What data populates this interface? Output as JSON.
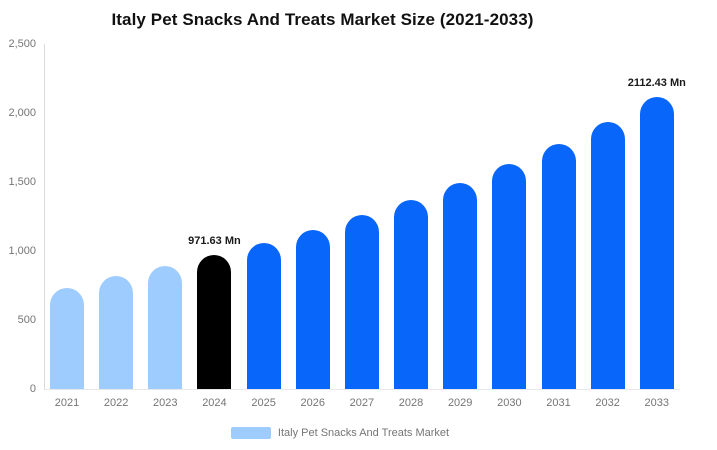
{
  "title": "Italy Pet Snacks And Treats Market Size (2021-2033)",
  "legend": {
    "label": "Italy Pet Snacks And Treats Market",
    "swatch_color": "#9fccfe"
  },
  "colors": {
    "past": "#9fccfe",
    "current": "#000000",
    "forecast": "#0866fa",
    "axis_line": "#d9d9d9",
    "baseline": "#e8e8e8",
    "tick_text": "#757575",
    "title_text": "#111111",
    "value_label_text": "#1a1a1a"
  },
  "y_axis": {
    "ticks": [
      "2,500",
      "2,000",
      "1,500",
      "1,000",
      "500",
      "0"
    ],
    "min": 0,
    "max": 2500
  },
  "chart_data": {
    "type": "bar",
    "title": "Italy Pet Snacks And Treats Market Size (2021-2033)",
    "xlabel": "",
    "ylabel": "",
    "unit": "Mn",
    "ylim": [
      0,
      2500
    ],
    "grid": false,
    "legend_position": "bottom",
    "categories": [
      "2021",
      "2022",
      "2023",
      "2024",
      "2025",
      "2026",
      "2027",
      "2028",
      "2029",
      "2030",
      "2031",
      "2032",
      "2033"
    ],
    "values": [
      735,
      818,
      891,
      971.63,
      1059,
      1155,
      1259,
      1372,
      1496,
      1631,
      1778,
      1938,
      2112.43
    ],
    "points": [
      {
        "year": "2021",
        "value": 735,
        "segment": "past",
        "label": ""
      },
      {
        "year": "2022",
        "value": 818,
        "segment": "past",
        "label": ""
      },
      {
        "year": "2023",
        "value": 891,
        "segment": "past",
        "label": ""
      },
      {
        "year": "2024",
        "value": 971.63,
        "segment": "current",
        "label": "971.63 Mn"
      },
      {
        "year": "2025",
        "value": 1059,
        "segment": "forecast",
        "label": ""
      },
      {
        "year": "2026",
        "value": 1155,
        "segment": "forecast",
        "label": ""
      },
      {
        "year": "2027",
        "value": 1259,
        "segment": "forecast",
        "label": ""
      },
      {
        "year": "2028",
        "value": 1372,
        "segment": "forecast",
        "label": ""
      },
      {
        "year": "2029",
        "value": 1496,
        "segment": "forecast",
        "label": ""
      },
      {
        "year": "2030",
        "value": 1631,
        "segment": "forecast",
        "label": ""
      },
      {
        "year": "2031",
        "value": 1778,
        "segment": "forecast",
        "label": ""
      },
      {
        "year": "2032",
        "value": 1938,
        "segment": "forecast",
        "label": ""
      },
      {
        "year": "2033",
        "value": 2112.43,
        "segment": "forecast",
        "label": "2112.43 Mn"
      }
    ]
  }
}
